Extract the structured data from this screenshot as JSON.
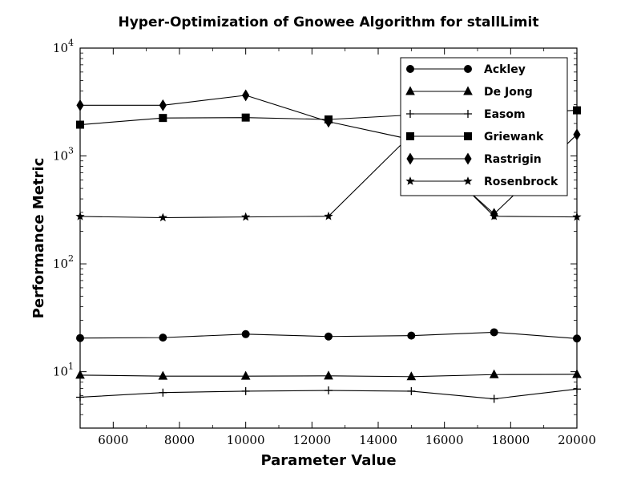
{
  "chart_data": {
    "type": "line",
    "title": "Hyper-Optimization of Gnowee Algorithm for stallLimit",
    "xlabel": "Parameter Value",
    "ylabel": "Performance Metric",
    "xlim": [
      5000,
      20000
    ],
    "ylim": [
      3,
      10000
    ],
    "yscale": "log",
    "x_ticks": [
      6000,
      8000,
      10000,
      12000,
      14000,
      16000,
      18000,
      20000
    ],
    "x_tick_labels": [
      "6000",
      "8000",
      "10000",
      "12000",
      "14000",
      "16000",
      "18000",
      "20000"
    ],
    "y_ticks": [
      {
        "value": 10,
        "base": "10",
        "exp": "1"
      },
      {
        "value": 100,
        "base": "10",
        "exp": "2"
      },
      {
        "value": 1000,
        "base": "10",
        "exp": "3"
      },
      {
        "value": 10000,
        "base": "10",
        "exp": "4"
      }
    ],
    "grid": false,
    "legend_position": "top-right",
    "x": [
      5000,
      7500,
      10000,
      12500,
      15000,
      17500,
      20000
    ],
    "series": [
      {
        "name": "Ackley",
        "marker": "circle",
        "color": "#000000",
        "values": [
          20.5,
          20.7,
          22.3,
          21.2,
          21.6,
          23.2,
          20.3
        ]
      },
      {
        "name": "De Jong",
        "marker": "triangle",
        "color": "#000000",
        "values": [
          9.3,
          9.1,
          9.1,
          9.15,
          9.0,
          9.4,
          9.45
        ]
      },
      {
        "name": "Easom",
        "marker": "plus",
        "color": "#000000",
        "values": [
          5.8,
          6.4,
          6.6,
          6.7,
          6.6,
          5.6,
          6.9
        ]
      },
      {
        "name": "Griewank",
        "marker": "square",
        "color": "#000000",
        "values": [
          1950,
          2250,
          2270,
          2180,
          2400,
          2450,
          2650
        ]
      },
      {
        "name": "Rastrigin",
        "marker": "diamond",
        "color": "#000000",
        "values": [
          2950,
          2950,
          3650,
          2080,
          1420,
          290,
          1580
        ]
      },
      {
        "name": "Rosenbrock",
        "marker": "star",
        "color": "#000000",
        "values": [
          275,
          268,
          272,
          276,
          1580,
          276,
          272
        ]
      }
    ]
  }
}
